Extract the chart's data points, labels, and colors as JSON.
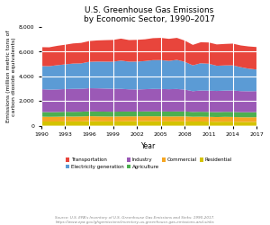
{
  "title": "U.S. Greenhouse Gas Emissions\nby Economic Sector, 1990–2017",
  "xlabel": "Year",
  "ylabel": "Emissions (million metric tons of\ncarbon dioxide equivalents)",
  "years": [
    1990,
    1991,
    1992,
    1993,
    1994,
    1995,
    1996,
    1997,
    1998,
    1999,
    2000,
    2001,
    2002,
    2003,
    2004,
    2005,
    2006,
    2007,
    2008,
    2009,
    2010,
    2011,
    2012,
    2013,
    2014,
    2015,
    2016,
    2017
  ],
  "sectors": {
    "Residential": {
      "color": "#d4c300",
      "values": [
        340,
        335,
        338,
        350,
        345,
        348,
        370,
        355,
        348,
        345,
        350,
        358,
        355,
        362,
        358,
        355,
        348,
        352,
        355,
        335,
        338,
        330,
        318,
        328,
        325,
        310,
        308,
        312
      ]
    },
    "Commercial": {
      "color": "#f5a623",
      "values": [
        390,
        385,
        388,
        395,
        392,
        398,
        405,
        400,
        398,
        395,
        400,
        398,
        400,
        402,
        405,
        402,
        398,
        400,
        398,
        388,
        392,
        388,
        382,
        388,
        385,
        375,
        372,
        378
      ]
    },
    "Agriculture": {
      "color": "#4caf50",
      "values": [
        380,
        378,
        380,
        382,
        385,
        385,
        388,
        390,
        392,
        390,
        392,
        390,
        388,
        392,
        395,
        395,
        398,
        400,
        398,
        392,
        398,
        400,
        402,
        405,
        408,
        405,
        408,
        410
      ]
    },
    "Industry": {
      "color": "#9b59b6",
      "values": [
        1850,
        1820,
        1830,
        1840,
        1860,
        1855,
        1870,
        1880,
        1870,
        1855,
        1840,
        1800,
        1790,
        1800,
        1820,
        1820,
        1810,
        1820,
        1770,
        1680,
        1720,
        1720,
        1710,
        1720,
        1730,
        1710,
        1700,
        1700
      ]
    },
    "Electricity generation": {
      "color": "#5b9bd5",
      "values": [
        1870,
        1900,
        1960,
        2000,
        2050,
        2060,
        2140,
        2170,
        2180,
        2200,
        2290,
        2240,
        2260,
        2280,
        2330,
        2340,
        2290,
        2360,
        2250,
        2090,
        2210,
        2180,
        2040,
        2040,
        2040,
        1940,
        1830,
        1750
      ]
    },
    "Transportation": {
      "color": "#e8453c",
      "values": [
        1530,
        1530,
        1570,
        1590,
        1630,
        1660,
        1680,
        1710,
        1740,
        1760,
        1780,
        1750,
        1760,
        1760,
        1780,
        1800,
        1790,
        1780,
        1720,
        1660,
        1700,
        1720,
        1730,
        1740,
        1760,
        1760,
        1800,
        1820
      ]
    }
  },
  "stack_order": [
    "Residential",
    "Commercial",
    "Agriculture",
    "Industry",
    "Electricity generation",
    "Transportation"
  ],
  "legend_order": [
    "Transportation",
    "Electricity generation",
    "Industry",
    "Agriculture",
    "Commercial",
    "Residential"
  ],
  "ylim": [
    0,
    8000
  ],
  "yticks": [
    0,
    2000,
    4000,
    6000,
    8000
  ],
  "xticks": [
    1990,
    1993,
    1996,
    1999,
    2002,
    2005,
    2008,
    2011,
    2014,
    2017
  ],
  "source_text": "Source: U.S. EPA's Inventory of U.S. Greenhouse Gas Emissions and Sinks: 1990-2017.\nhttps://www.epa.gov/ghgemissions/inventory-us-greenhouse-gas-emissions-and-sinks",
  "bg_color": "#ffffff",
  "grid_color": "#cccccc"
}
